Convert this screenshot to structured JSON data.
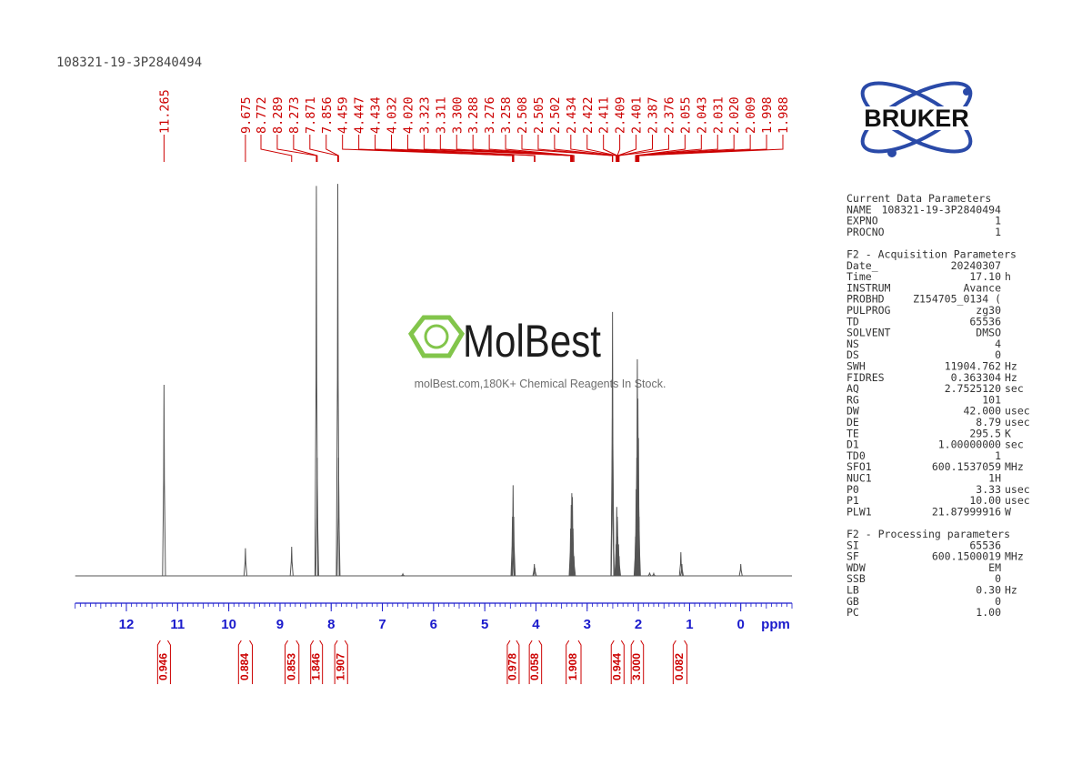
{
  "chart_data": {
    "type": "nmr",
    "title": "108321-19-3P2840494",
    "x_label": "ppm",
    "xlim": [
      13,
      -1
    ],
    "xticks": [
      12,
      11,
      10,
      9,
      8,
      7,
      6,
      5,
      4,
      3,
      2,
      1,
      0
    ],
    "ylim": [
      0,
      100
    ],
    "color": "#555555",
    "label_color": "#cc0000",
    "axis_color": "#1a1acc",
    "peaks": [
      11.265,
      9.675,
      8.772,
      8.289,
      8.273,
      7.871,
      7.856,
      4.459,
      4.447,
      4.434,
      4.032,
      {
        "value": 4.02,
        "label": "4.020"
      },
      3.323,
      3.311,
      {
        "value": 3.3,
        "label": "3.300"
      },
      3.288,
      3.276,
      3.258,
      2.508,
      2.505,
      2.502,
      2.434,
      2.422,
      2.411,
      2.409,
      2.401,
      2.387,
      2.376,
      2.055,
      2.043,
      2.031,
      {
        "value": 2.02,
        "label": "2.020"
      },
      2.009,
      1.998,
      1.988
    ],
    "heights": [
      48.5,
      7,
      7.4,
      99,
      30,
      99.5,
      30,
      15,
      23,
      15,
      3,
      2,
      12,
      18,
      21,
      20,
      12,
      5,
      40,
      67,
      40,
      8,
      17.5,
      15,
      14,
      10,
      8,
      5,
      10,
      22,
      30,
      55,
      45,
      35,
      15
    ],
    "minor_signals": {
      "x": [
        6.6,
        1.78,
        1.7,
        1.17,
        1.15,
        0.0
      ],
      "heights": [
        0.5,
        0.8,
        0.6,
        6,
        3,
        3
      ]
    },
    "integrals": [
      {
        "value": 0.946,
        "from": 11.39,
        "to": 11.14
      },
      {
        "value": 0.884,
        "from": 9.81,
        "to": 9.54
      },
      {
        "value": 0.853,
        "from": 8.9,
        "to": 8.63
      },
      {
        "value": 1.846,
        "from": 8.4,
        "to": 8.17
      },
      {
        "value": 1.907,
        "from": 7.93,
        "to": 7.68
      },
      {
        "value": 0.978,
        "from": 4.56,
        "to": 4.33
      },
      {
        "value": 0.058,
        "from": 4.13,
        "to": 3.89
      },
      {
        "value": 1.908,
        "from": 3.41,
        "to": 3.12
      },
      {
        "value": 0.944,
        "from": 2.53,
        "to": 2.28
      },
      {
        "value": 3.0,
        "label": "3.000",
        "from": 2.14,
        "to": 1.9
      },
      {
        "value": 0.082,
        "from": 1.32,
        "to": 1.05
      }
    ]
  },
  "logo": {
    "text": "BRUKER"
  },
  "watermark": {
    "brand": "MolBest",
    "tagline": "molBest.com,180K+ Chemical Reagents In Stock."
  },
  "parameters": [
    {
      "title": "Current Data Parameters",
      "rows": [
        [
          "NAME",
          "108321-19-3P2840494",
          ""
        ],
        [
          "EXPNO",
          "1",
          ""
        ],
        [
          "PROCNO",
          "1",
          ""
        ]
      ]
    },
    {
      "title": "F2 - Acquisition Parameters",
      "rows": [
        [
          "Date_",
          "20240307",
          ""
        ],
        [
          "Time",
          "17.10",
          "h"
        ],
        [
          "INSTRUM",
          "Avance",
          ""
        ],
        [
          "PROBHD",
          "Z154705_0134 (",
          ""
        ],
        [
          "PULPROG",
          "zg30",
          ""
        ],
        [
          "TD",
          "65536",
          ""
        ],
        [
          "SOLVENT",
          "DMSO",
          ""
        ],
        [
          "NS",
          "4",
          ""
        ],
        [
          "DS",
          "0",
          ""
        ],
        [
          "SWH",
          "11904.762",
          "Hz"
        ],
        [
          "FIDRES",
          "0.363304",
          "Hz"
        ],
        [
          "AQ",
          "2.7525120",
          "sec"
        ],
        [
          "RG",
          "101",
          ""
        ],
        [
          "DW",
          "42.000",
          "usec"
        ],
        [
          "DE",
          "8.79",
          "usec"
        ],
        [
          "TE",
          "295.5",
          "K"
        ],
        [
          "D1",
          "1.00000000",
          "sec"
        ],
        [
          "TD0",
          "1",
          ""
        ],
        [
          "SFO1",
          "600.1537059",
          "MHz"
        ],
        [
          "NUC1",
          "1H",
          ""
        ],
        [
          "P0",
          "3.33",
          "usec"
        ],
        [
          "P1",
          "10.00",
          "usec"
        ],
        [
          "PLW1",
          "21.87999916",
          "W"
        ]
      ]
    },
    {
      "title": "F2 - Processing parameters",
      "rows": [
        [
          "SI",
          "65536",
          ""
        ],
        [
          "SF",
          "600.1500019",
          "MHz"
        ],
        [
          "WDW",
          "EM",
          ""
        ],
        [
          "SSB",
          "0",
          ""
        ],
        [
          "LB",
          "0.30",
          "Hz"
        ],
        [
          "GB",
          "0",
          ""
        ],
        [
          "PC",
          "1.00",
          ""
        ]
      ]
    }
  ]
}
